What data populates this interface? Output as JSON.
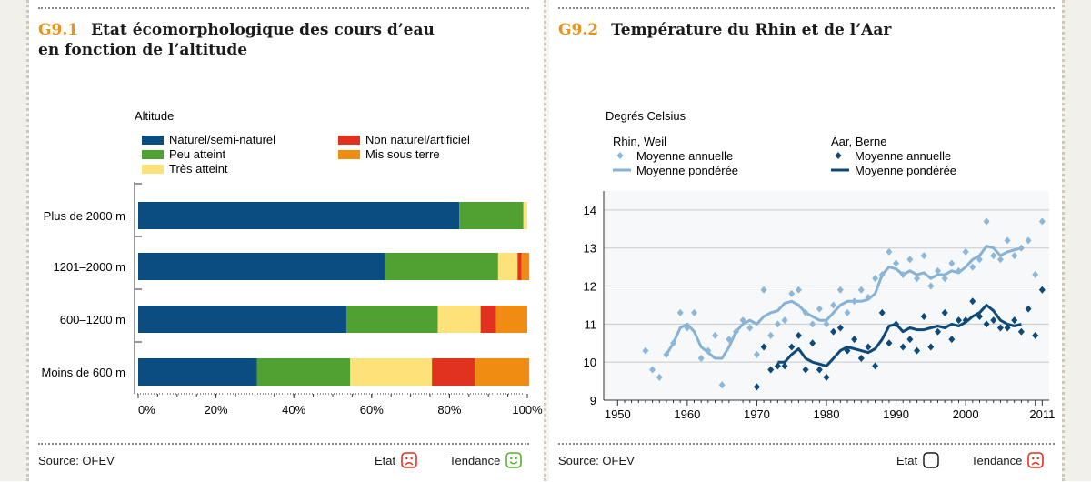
{
  "left_panel": {
    "number": "G9.1",
    "title_line1": "Etat écomorphologique des cours d’eau",
    "title_line2": "en fonction de l’altitude",
    "source": "Source: OFEV",
    "etat_label": "Etat",
    "tendance_label": "Tendance",
    "etat_icon": "sad-face-icon",
    "tendance_icon": "happy-face-icon"
  },
  "right_panel": {
    "number": "G9.2",
    "title": "Température du Rhin et de l’Aar",
    "source": "Source: OFEV",
    "etat_label": "Etat",
    "tendance_label": "Tendance",
    "etat_icon": "empty-box-icon",
    "tendance_icon": "sad-face-icon"
  },
  "colors": {
    "naturel": "#0b4d80",
    "peu": "#4fa132",
    "non": "#e0321e",
    "tres": "#fde27a",
    "mis": "#f08c12",
    "rhin_point": "#8cb7d8",
    "rhin_line": "#86b2d6",
    "aar_point": "#0d4a7a",
    "aar_line": "#0d4a7a",
    "title_accent": "#e8941a",
    "sad": "#e0321e",
    "happy": "#58b030"
  },
  "chart_data": [
    {
      "type": "bar",
      "orientation": "horizontal",
      "stacked": true,
      "ylabel": "Altitude",
      "categories": [
        "Plus de 2000 m",
        "1201–2000 m",
        "600–1200 m",
        "Moins de 600 m"
      ],
      "xticks": [
        "0%",
        "20%",
        "40%",
        "60%",
        "80%",
        "100%"
      ],
      "xlim": [
        0,
        100
      ],
      "legend": [
        "Naturel/semi-naturel",
        "Non naturel/artificiel",
        "Peu atteint",
        "Mis sous terre",
        "Très atteint"
      ],
      "series": [
        {
          "name": "Naturel/semi-naturel",
          "key": "naturel",
          "values": [
            82.5,
            63.5,
            53.5,
            30.5
          ]
        },
        {
          "name": "Peu atteint",
          "key": "peu",
          "values": [
            16.5,
            29,
            23.5,
            24
          ]
        },
        {
          "name": "Très atteint",
          "key": "tres",
          "values": [
            1,
            5,
            11,
            21
          ]
        },
        {
          "name": "Non naturel/artificiel",
          "key": "non",
          "values": [
            0,
            1,
            4,
            11
          ]
        },
        {
          "name": "Mis sous terre",
          "key": "mis",
          "values": [
            0,
            2,
            8,
            14
          ]
        }
      ]
    },
    {
      "type": "line",
      "ylabel": "Degrés Celsius",
      "xlim": [
        1948,
        2012
      ],
      "ylim": [
        9,
        14.5
      ],
      "xticks": [
        "1950",
        "1960",
        "1970",
        "1980",
        "1990",
        "2000",
        "2011"
      ],
      "yticks": [
        "9",
        "10",
        "11",
        "12",
        "13",
        "14"
      ],
      "legend_groups": [
        {
          "title": "Rhin, Weil",
          "points_label": "Moyenne annuelle",
          "line_label": "Moyenne pondérée"
        },
        {
          "title": "Aar, Berne",
          "points_label": "Moyenne annuelle",
          "line_label": "Moyenne pondérée"
        }
      ],
      "series": [
        {
          "name": "Rhin, Weil – Moyenne annuelle",
          "kind": "points",
          "key": "rhin_point",
          "x": [
            1954,
            1955,
            1956,
            1957,
            1958,
            1959,
            1960,
            1961,
            1962,
            1963,
            1964,
            1965,
            1966,
            1967,
            1968,
            1969,
            1970,
            1971,
            1972,
            1973,
            1974,
            1975,
            1976,
            1977,
            1978,
            1979,
            1980,
            1981,
            1982,
            1983,
            1984,
            1985,
            1986,
            1987,
            1988,
            1989,
            1990,
            1991,
            1992,
            1993,
            1994,
            1995,
            1996,
            1997,
            1998,
            1999,
            2000,
            2001,
            2002,
            2003,
            2004,
            2005,
            2006,
            2007,
            2008,
            2009,
            2010,
            2011
          ],
          "y": [
            10.3,
            9.8,
            9.6,
            10.2,
            10.5,
            11.3,
            10.9,
            11.3,
            10.1,
            10.3,
            10.7,
            9.4,
            10.6,
            10.8,
            11.1,
            10.9,
            10.2,
            11.9,
            10.7,
            11.0,
            11.1,
            11.8,
            11.9,
            11.3,
            11.0,
            11.4,
            11.0,
            11.5,
            11.9,
            11.3,
            11.6,
            11.9,
            11.7,
            12.2,
            12.3,
            12.9,
            12.6,
            12.3,
            12.7,
            12.2,
            12.8,
            12.0,
            12.4,
            12.2,
            12.6,
            12.4,
            12.9,
            12.5,
            12.7,
            13.7,
            12.8,
            12.7,
            13.2,
            12.8,
            13.0,
            13.2,
            12.3,
            13.7
          ]
        },
        {
          "name": "Rhin, Weil – Moyenne pondérée",
          "kind": "line",
          "key": "rhin_line",
          "x": [
            1957,
            1958,
            1959,
            1960,
            1961,
            1962,
            1963,
            1964,
            1965,
            1966,
            1967,
            1968,
            1969,
            1970,
            1971,
            1972,
            1973,
            1974,
            1975,
            1976,
            1977,
            1978,
            1979,
            1980,
            1981,
            1982,
            1983,
            1984,
            1985,
            1986,
            1987,
            1988,
            1989,
            1990,
            1991,
            1992,
            1993,
            1994,
            1995,
            1996,
            1997,
            1998,
            1999,
            2000,
            2001,
            2002,
            2003,
            2004,
            2005,
            2006,
            2007,
            2008
          ],
          "y": [
            10.2,
            10.5,
            10.9,
            11.0,
            10.8,
            10.4,
            10.25,
            10.1,
            10.1,
            10.4,
            10.8,
            11.0,
            11.1,
            11.0,
            11.2,
            11.3,
            11.35,
            11.55,
            11.6,
            11.5,
            11.3,
            11.2,
            11.1,
            11.1,
            11.3,
            11.5,
            11.6,
            11.6,
            11.6,
            11.65,
            11.8,
            12.3,
            12.5,
            12.45,
            12.3,
            12.4,
            12.3,
            12.35,
            12.2,
            12.3,
            12.3,
            12.4,
            12.35,
            12.5,
            12.7,
            12.8,
            13.05,
            13.0,
            12.8,
            12.9,
            12.95,
            13.0
          ]
        },
        {
          "name": "Aar, Berne – Moyenne annuelle",
          "kind": "points",
          "key": "aar_point",
          "x": [
            1970,
            1971,
            1972,
            1973,
            1974,
            1975,
            1976,
            1977,
            1978,
            1979,
            1980,
            1981,
            1982,
            1983,
            1984,
            1985,
            1986,
            1987,
            1988,
            1989,
            1990,
            1991,
            1992,
            1993,
            1994,
            1995,
            1996,
            1997,
            1998,
            1999,
            2000,
            2001,
            2002,
            2003,
            2004,
            2005,
            2006,
            2007,
            2008,
            2009,
            2010,
            2011
          ],
          "y": [
            9.35,
            10.4,
            9.8,
            9.9,
            9.9,
            10.4,
            10.7,
            9.8,
            10.5,
            9.8,
            9.6,
            10.8,
            10.9,
            10.3,
            10.6,
            10.1,
            10.4,
            9.9,
            11.3,
            10.5,
            11.0,
            10.4,
            10.6,
            10.3,
            11.2,
            10.4,
            10.8,
            11.3,
            10.6,
            11.1,
            11.1,
            11.6,
            11.2,
            11.0,
            11.1,
            10.9,
            10.9,
            11.1,
            10.8,
            11.4,
            10.7,
            11.9
          ]
        },
        {
          "name": "Aar, Berne – Moyenne pondérée",
          "kind": "line",
          "key": "aar_line",
          "x": [
            1973,
            1974,
            1975,
            1976,
            1977,
            1978,
            1979,
            1980,
            1981,
            1982,
            1983,
            1984,
            1985,
            1986,
            1987,
            1988,
            1989,
            1990,
            1991,
            1992,
            1993,
            1994,
            1995,
            1996,
            1997,
            1998,
            1999,
            2000,
            2001,
            2002,
            2003,
            2004,
            2005,
            2006,
            2007,
            2008
          ],
          "y": [
            10.0,
            10.0,
            10.2,
            10.35,
            10.1,
            10.0,
            9.95,
            9.9,
            10.1,
            10.3,
            10.4,
            10.35,
            10.3,
            10.25,
            10.35,
            10.6,
            10.95,
            11.0,
            10.8,
            10.9,
            10.85,
            10.85,
            10.9,
            10.95,
            10.9,
            11.0,
            10.95,
            11.05,
            11.2,
            11.3,
            11.5,
            11.35,
            11.1,
            11.0,
            10.95,
            11.0
          ]
        }
      ]
    }
  ]
}
